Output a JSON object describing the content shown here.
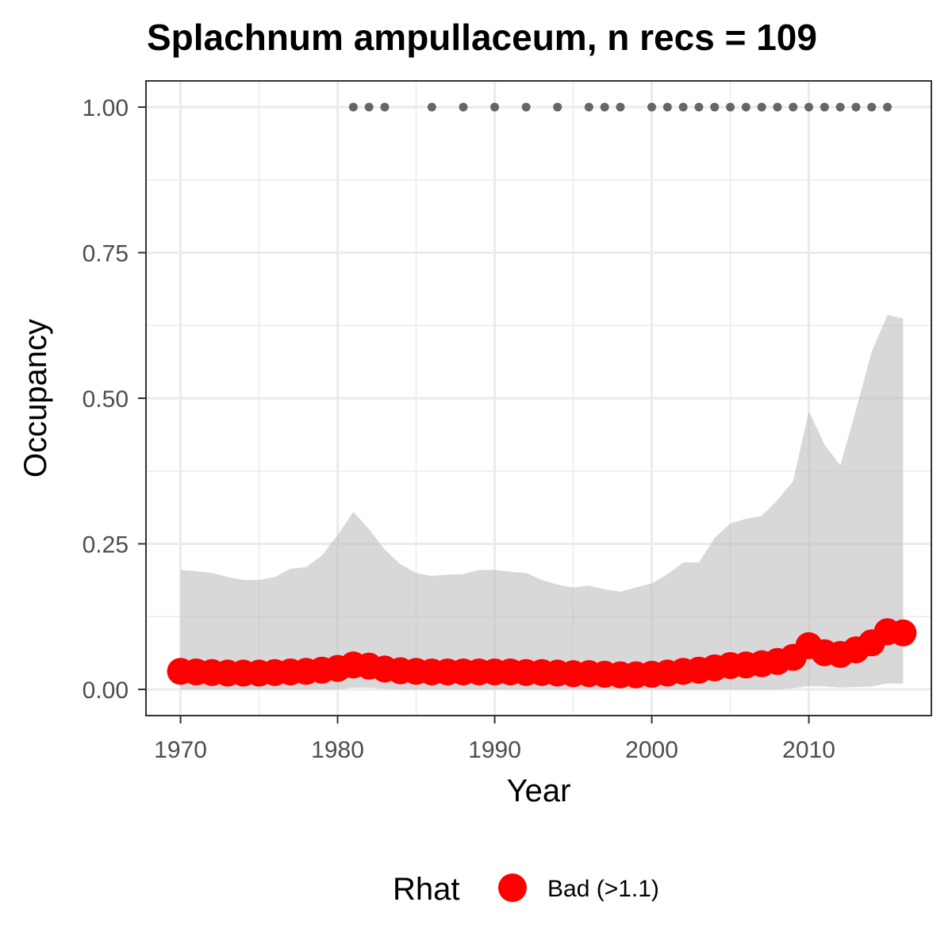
{
  "chart_data": {
    "type": "area",
    "title": "Splachnum ampullaceum, n recs = 109",
    "xlabel": "Year",
    "ylabel": "Occupancy",
    "xlim": [
      1967.8,
      2017.8
    ],
    "ylim": [
      -0.045,
      1.045
    ],
    "x_ticks": [
      1970,
      1980,
      1990,
      2000,
      2010
    ],
    "x_tick_labels": [
      "1970",
      "1980",
      "1990",
      "2000",
      "2010"
    ],
    "y_ticks": [
      0,
      0.25,
      0.5,
      0.75,
      1
    ],
    "y_tick_labels": [
      "0.00",
      "0.25",
      "0.50",
      "0.75",
      "1.00"
    ],
    "grid": true,
    "legend": {
      "position": "bottom",
      "title": "Rhat",
      "entries": [
        {
          "label": "Bad (>1.1)",
          "color": "#ff0000"
        }
      ]
    },
    "colors": {
      "point": "#ff0000",
      "band": "#bebebe",
      "record": "#666666",
      "grid": "#ebebeb"
    },
    "years": [
      1970,
      1971,
      1972,
      1973,
      1974,
      1975,
      1976,
      1977,
      1978,
      1979,
      1980,
      1981,
      1982,
      1983,
      1984,
      1985,
      1986,
      1987,
      1988,
      1989,
      1990,
      1991,
      1992,
      1993,
      1994,
      1995,
      1996,
      1997,
      1998,
      1999,
      2000,
      2001,
      2002,
      2003,
      2004,
      2005,
      2006,
      2007,
      2008,
      2009,
      2010,
      2011,
      2012,
      2013,
      2014,
      2015,
      2016
    ],
    "series": [
      {
        "kind": "points",
        "values": [
          0.031,
          0.03,
          0.029,
          0.028,
          0.028,
          0.028,
          0.029,
          0.03,
          0.031,
          0.033,
          0.036,
          0.042,
          0.04,
          0.035,
          0.032,
          0.031,
          0.03,
          0.03,
          0.03,
          0.03,
          0.03,
          0.03,
          0.029,
          0.029,
          0.028,
          0.027,
          0.027,
          0.026,
          0.025,
          0.025,
          0.026,
          0.028,
          0.031,
          0.033,
          0.037,
          0.041,
          0.042,
          0.044,
          0.048,
          0.055,
          0.075,
          0.063,
          0.06,
          0.068,
          0.08,
          0.099,
          0.097
        ]
      },
      {
        "kind": "band",
        "lower": [
          0,
          0,
          0,
          0,
          0,
          0,
          0,
          0,
          0,
          0,
          0,
          0.003,
          0.003,
          0.001,
          0,
          0,
          0,
          0,
          0,
          0,
          0,
          0,
          0,
          0,
          0,
          0,
          0,
          0,
          0,
          0,
          0,
          0,
          0,
          0,
          0,
          0,
          0,
          0,
          0,
          0.002,
          0.006,
          0.005,
          0.003,
          0.004,
          0.005,
          0.01,
          0.01
        ],
        "upper": [
          0.205,
          0.203,
          0.2,
          0.193,
          0.188,
          0.188,
          0.193,
          0.207,
          0.21,
          0.23,
          0.265,
          0.305,
          0.275,
          0.24,
          0.215,
          0.2,
          0.195,
          0.197,
          0.198,
          0.205,
          0.205,
          0.202,
          0.2,
          0.188,
          0.18,
          0.175,
          0.178,
          0.172,
          0.168,
          0.175,
          0.182,
          0.198,
          0.218,
          0.218,
          0.26,
          0.285,
          0.293,
          0.298,
          0.325,
          0.358,
          0.478,
          0.42,
          0.385,
          0.48,
          0.58,
          0.643,
          0.637
        ]
      }
    ],
    "record_years": [
      1981,
      1982,
      1983,
      1986,
      1988,
      1990,
      1992,
      1994,
      1996,
      1997,
      1998,
      2000,
      2001,
      2002,
      2003,
      2004,
      2005,
      2006,
      2007,
      2008,
      2009,
      2010,
      2011,
      2012,
      2013,
      2014,
      2015
    ],
    "record_value": 1.0
  }
}
